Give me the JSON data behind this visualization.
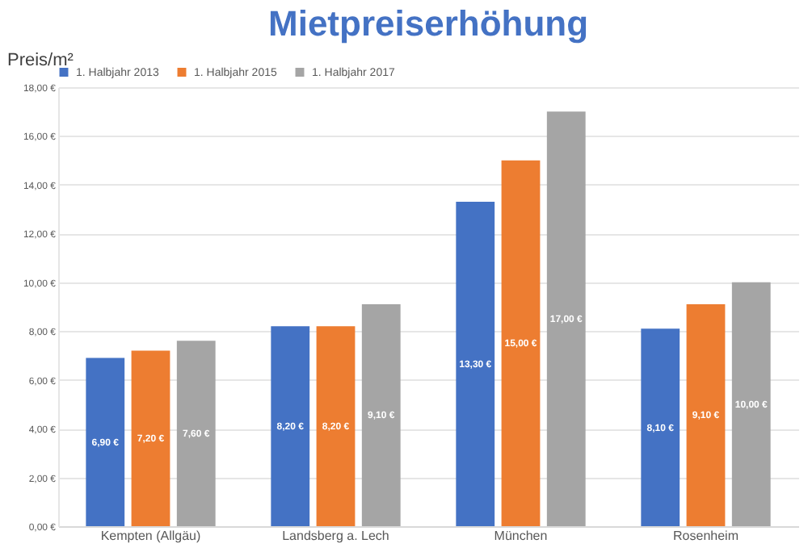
{
  "chart_data": {
    "type": "bar",
    "title": "Mietpreiserhöhung",
    "ylabel": "Preis/m²",
    "categories": [
      "Kempten (Allgäu)",
      "Landsberg a. Lech",
      "München",
      "Rosenheim"
    ],
    "series": [
      {
        "name": "1. Halbjahr 2013",
        "color": "#4472c4",
        "values": [
          6.9,
          8.2,
          13.3,
          8.1
        ],
        "value_labels": [
          "6,90 €",
          "8,20 €",
          "13,30 €",
          "8,10 €"
        ]
      },
      {
        "name": "1. Halbjahr 2015",
        "color": "#ed7d31",
        "values": [
          7.2,
          8.2,
          15.0,
          9.1
        ],
        "value_labels": [
          "7,20 €",
          "8,20 €",
          "15,00 €",
          "9,10 €"
        ]
      },
      {
        "name": "1. Halbjahr 2017",
        "color": "#a5a5a5",
        "values": [
          7.6,
          9.1,
          17.0,
          10.0
        ],
        "value_labels": [
          "7,60 €",
          "9,10 €",
          "17,00 €",
          "10,00 €"
        ]
      }
    ],
    "ylim": [
      0,
      18
    ],
    "yticks": [
      {
        "value": 0,
        "label": "0,00 €"
      },
      {
        "value": 2,
        "label": "2,00 €"
      },
      {
        "value": 4,
        "label": "4,00 €"
      },
      {
        "value": 6,
        "label": "6,00 €"
      },
      {
        "value": 8,
        "label": "8,00 €"
      },
      {
        "value": 10,
        "label": "10,00 €"
      },
      {
        "value": 12,
        "label": "12,00 €"
      },
      {
        "value": 14,
        "label": "14,00 €"
      },
      {
        "value": 16,
        "label": "16,00 €"
      },
      {
        "value": 18,
        "label": "18,00 €"
      }
    ],
    "grid": "y",
    "legend": "top"
  }
}
